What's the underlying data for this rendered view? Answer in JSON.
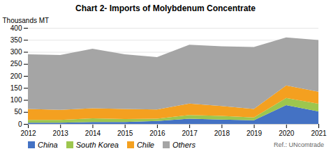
{
  "chart_data": {
    "type": "area",
    "stacked": true,
    "title": "Chart 2- Imports of Molybdenum Concentrate",
    "ylabel": "Thousands MT",
    "annotations": [
      "Ref.: UNcomtrade"
    ],
    "x": [
      2012,
      2013,
      2014,
      2015,
      2016,
      2017,
      2018,
      2019,
      2020,
      2021
    ],
    "series": [
      {
        "name": "China",
        "color": "#4472c4",
        "values": [
          5,
          5,
          8,
          8,
          12,
          22,
          18,
          15,
          78,
          52
        ]
      },
      {
        "name": "South Korea",
        "color": "#9dc64e",
        "values": [
          12,
          12,
          15,
          12,
          10,
          15,
          15,
          12,
          30,
          32
        ]
      },
      {
        "name": "Chile",
        "color": "#f4a020",
        "values": [
          45,
          42,
          42,
          42,
          38,
          48,
          42,
          35,
          52,
          50
        ]
      },
      {
        "name": "Others",
        "color": "#a5a5a5",
        "values": [
          228,
          228,
          248,
          228,
          218,
          245,
          248,
          258,
          200,
          215
        ]
      }
    ],
    "xlim": [
      2012,
      2021
    ],
    "xticks": [
      2012,
      2013,
      2014,
      2015,
      2016,
      2017,
      2018,
      2019,
      2020,
      2021
    ],
    "ylim": [
      0,
      400
    ],
    "yticks": [
      0,
      50,
      100,
      150,
      200,
      250,
      300,
      350,
      400
    ],
    "grid": true,
    "legend": "bottom"
  }
}
